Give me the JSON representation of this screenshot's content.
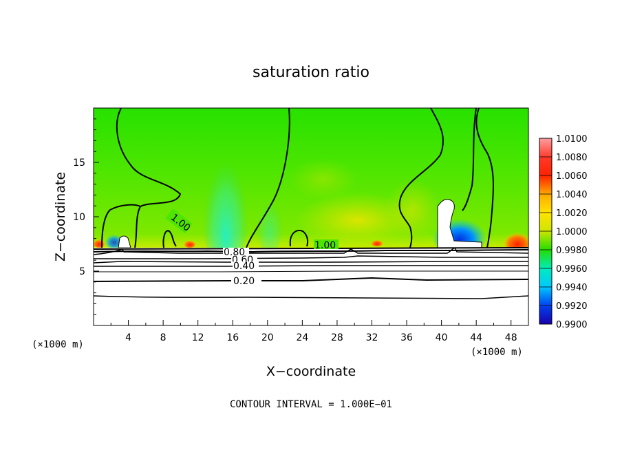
{
  "chart_data": {
    "type": "heatmap",
    "title": "saturation ratio",
    "xlabel": "X−coordinate",
    "ylabel": "Z−coordinate",
    "x_unit": "(×1000 m)",
    "y_unit": "(×1000 m)",
    "xlim": [
      0,
      50
    ],
    "ylim": [
      0,
      20
    ],
    "x_ticks": [
      "4",
      "8",
      "12",
      "16",
      "20",
      "24",
      "28",
      "32",
      "36",
      "40",
      "44",
      "48"
    ],
    "y_ticks": [
      "5",
      "10",
      "15"
    ],
    "footer": "CONTOUR INTERVAL = 1.000E−01",
    "colorbar": {
      "levels": [
        "1.0100",
        "1.0080",
        "1.0060",
        "1.0040",
        "1.0020",
        "1.0000",
        "0.9980",
        "0.9960",
        "0.9940",
        "0.9920",
        "0.9900"
      ],
      "colors": [
        "#ff9ea0",
        "#ff3a2a",
        "#ff2200",
        "#ffaa00",
        "#ffe400",
        "#cce600",
        "#22dd00",
        "#00ecbc",
        "#00c8ff",
        "#0040f0",
        "#1a00aa",
        "#5a0090"
      ]
    },
    "contour_labels": [
      "1.00",
      "1.00",
      "0.80",
      "0.60",
      "0.40",
      "0.20"
    ],
    "contour_levels": [
      1.0,
      0.9,
      0.8,
      0.7,
      0.6,
      0.5,
      0.4,
      0.3,
      0.2,
      0.1
    ]
  }
}
